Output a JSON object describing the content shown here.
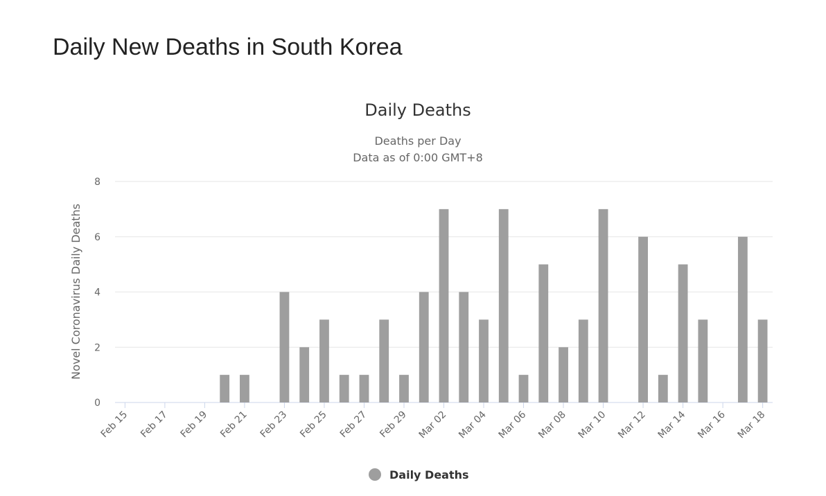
{
  "page": {
    "heading": "Daily New Deaths in South Korea"
  },
  "colors": {
    "bar": "#9e9e9e"
  },
  "chart_data": {
    "type": "bar",
    "title": "Daily Deaths",
    "subtitle_lines": [
      "Deaths per Day",
      "Data as of 0:00 GMT+8"
    ],
    "ylabel": "Novel Coronavirus Daily Deaths",
    "xlabel": "",
    "ylim": [
      0,
      8
    ],
    "y_ticks": [
      0,
      2,
      4,
      6,
      8
    ],
    "grid": true,
    "legend": "bottom-center",
    "categories": [
      "Feb 15",
      "Feb 16",
      "Feb 17",
      "Feb 18",
      "Feb 19",
      "Feb 20",
      "Feb 21",
      "Feb 22",
      "Feb 23",
      "Feb 24",
      "Feb 25",
      "Feb 26",
      "Feb 27",
      "Feb 28",
      "Feb 29",
      "Mar 01",
      "Mar 02",
      "Mar 03",
      "Mar 04",
      "Mar 05",
      "Mar 06",
      "Mar 07",
      "Mar 08",
      "Mar 09",
      "Mar 10",
      "Mar 11",
      "Mar 12",
      "Mar 13",
      "Mar 14",
      "Mar 15",
      "Mar 16",
      "Mar 17",
      "Mar 18"
    ],
    "x_tick_labels": [
      "Feb 15",
      "Feb 17",
      "Feb 19",
      "Feb 21",
      "Feb 23",
      "Feb 25",
      "Feb 27",
      "Feb 29",
      "Mar 02",
      "Mar 04",
      "Mar 06",
      "Mar 08",
      "Mar 10",
      "Mar 12",
      "Mar 14",
      "Mar 16",
      "Mar 18"
    ],
    "series": [
      {
        "name": "Daily Deaths",
        "values": [
          0,
          0,
          0,
          0,
          0,
          1,
          1,
          0,
          4,
          2,
          3,
          1,
          1,
          3,
          1,
          4,
          7,
          4,
          3,
          7,
          1,
          5,
          2,
          3,
          7,
          0,
          6,
          1,
          5,
          3,
          0,
          6,
          3
        ]
      }
    ]
  }
}
